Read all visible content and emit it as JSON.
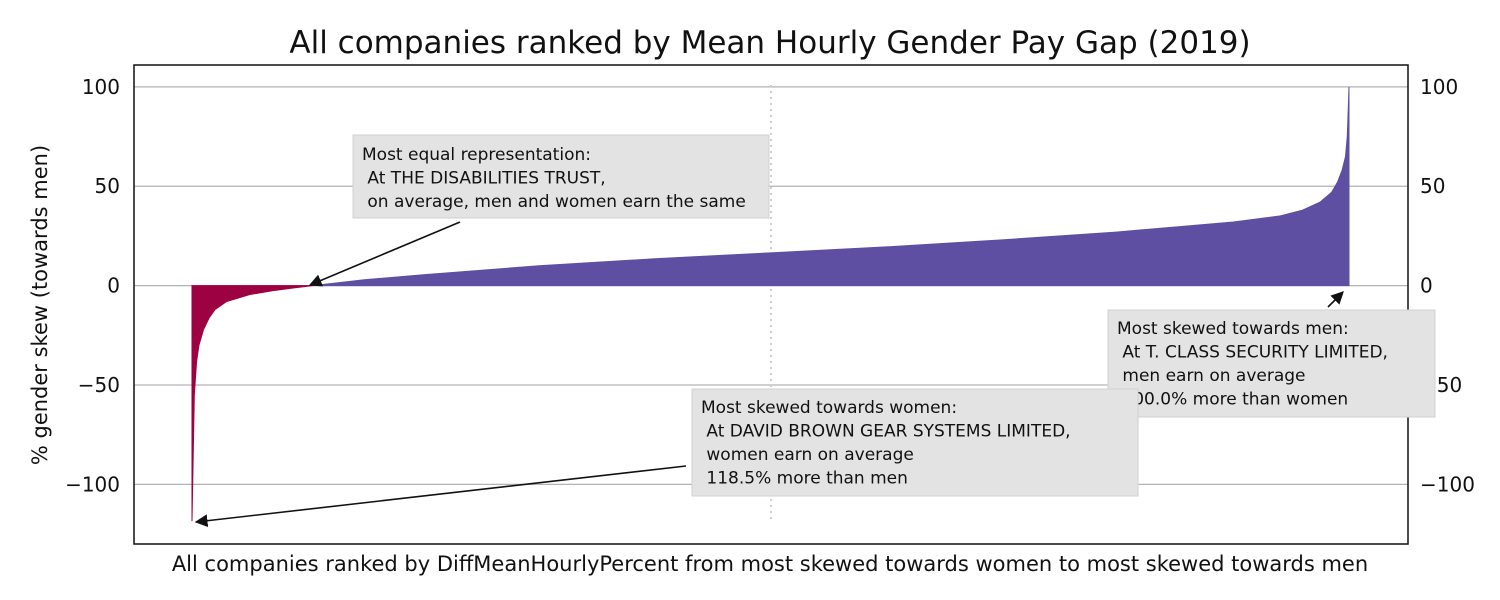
{
  "chart_data": {
    "type": "area",
    "title": "All companies ranked by Mean Hourly Gender Pay Gap (2019)",
    "xlabel": "All companies ranked by DiffMeanHourlyPercent from most skewed towards women to most skewed towards men",
    "ylabel": "% gender skew (towards men)",
    "ylim": [
      -130,
      111
    ],
    "yticks": [
      100,
      50,
      0,
      -50,
      -100
    ],
    "ytick_labels": [
      "100",
      "50",
      "0",
      "−50",
      "−100"
    ],
    "grid": "horizontal",
    "midline": "dotted",
    "colors": {
      "women": "#9e0142",
      "men": "#5e4fa2"
    },
    "series": [
      {
        "rank_fraction": [
          0.0,
          0.002,
          0.004,
          0.006,
          0.01,
          0.015,
          0.02,
          0.03,
          0.05,
          0.07,
          0.09,
          0.1044,
          0.15,
          0.2,
          0.3,
          0.4,
          0.5,
          0.6,
          0.7,
          0.8,
          0.85,
          0.9,
          0.94,
          0.96,
          0.975,
          0.985,
          0.99,
          0.994,
          0.997,
          0.9985,
          1.0
        ],
        "values": [
          -118.5,
          -55,
          -38,
          -30,
          -22,
          -16,
          -12,
          -8,
          -4.5,
          -2.5,
          -1,
          0,
          3,
          5.5,
          10,
          13.5,
          16.5,
          19.5,
          23,
          27,
          29.5,
          32,
          35,
          38,
          42,
          47,
          52,
          58,
          65,
          75,
          100
        ]
      }
    ],
    "annotations": [
      {
        "id": "equal",
        "lines": [
          "Most equal representation:",
          " At THE DISABILITIES TRUST,",
          " on average, men and women earn the same"
        ],
        "value": 0
      },
      {
        "id": "men",
        "lines": [
          "Most skewed towards men:",
          " At T. CLASS SECURITY LIMITED,",
          " men earn on average",
          " 100.0% more than women"
        ],
        "value": 100.0
      },
      {
        "id": "women",
        "lines": [
          "Most skewed towards women:",
          " At DAVID BROWN GEAR SYSTEMS LIMITED,",
          " women earn on average",
          " 118.5% more than men"
        ],
        "value": -118.5
      }
    ]
  }
}
